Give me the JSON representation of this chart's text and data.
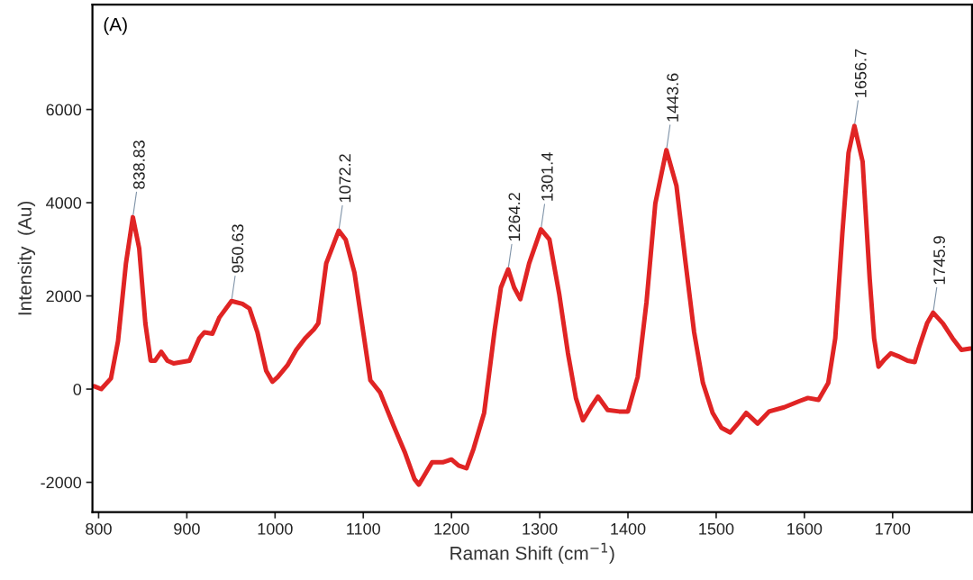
{
  "chart_data": {
    "type": "line",
    "xlabel": "Raman Shift (cm$^{−1}$)",
    "ylabel": "Intensity  (Au)",
    "xlim": [
      793,
      1790
    ],
    "xticks": [
      800,
      900,
      1000,
      1100,
      1200,
      1300,
      1400,
      1500,
      1600,
      1700
    ],
    "ylim": [
      -2640,
      8250
    ],
    "yticks": [
      {
        "value": -2000,
        "label": "-2000"
      },
      0,
      2000,
      4000,
      6000
    ],
    "grid": false,
    "legend": false,
    "marker": "none",
    "line_style": "solid",
    "series": [
      {
        "color": "#e02424",
        "x": [
          795,
          803,
          814,
          822,
          831,
          838.83,
          846,
          853,
          859,
          864,
          871,
          878,
          885,
          903,
          914,
          920,
          929,
          937,
          950.63,
          963,
          971,
          980,
          990,
          997,
          1003,
          1014,
          1024,
          1034,
          1044,
          1049,
          1058,
          1072.2,
          1080,
          1090,
          1100,
          1108,
          1119,
          1134,
          1147,
          1158,
          1163,
          1169,
          1178,
          1190,
          1200,
          1208,
          1217,
          1225,
          1237,
          1249,
          1256,
          1264.2,
          1271,
          1278,
          1288,
          1301.4,
          1311,
          1322,
          1332,
          1341,
          1349,
          1358,
          1366,
          1377,
          1390,
          1400,
          1411,
          1421,
          1431,
          1443.6,
          1455,
          1465,
          1475,
          1485,
          1496,
          1506,
          1516,
          1526,
          1534,
          1547,
          1560,
          1577,
          1594,
          1604,
          1616,
          1627,
          1635,
          1643,
          1650,
          1656.7,
          1666,
          1674,
          1679,
          1684,
          1691,
          1698,
          1706,
          1717,
          1725,
          1730,
          1739,
          1745.9,
          1757,
          1768,
          1778,
          1788
        ],
        "values": [
          60,
          0,
          230,
          1030,
          2700,
          3690,
          3020,
          1410,
          610,
          610,
          800,
          610,
          550,
          610,
          1090,
          1220,
          1190,
          1540,
          1890,
          1830,
          1730,
          1220,
          390,
          160,
          260,
          510,
          840,
          1090,
          1280,
          1410,
          2700,
          3400,
          3210,
          2500,
          1220,
          190,
          -70,
          -770,
          -1350,
          -1930,
          -2050,
          -1860,
          -1570,
          -1570,
          -1510,
          -1640,
          -1700,
          -1280,
          -510,
          1280,
          2180,
          2570,
          2180,
          1930,
          2700,
          3430,
          3210,
          2050,
          770,
          -190,
          -670,
          -390,
          -160,
          -450,
          -480,
          -480,
          260,
          1860,
          3980,
          5130,
          4360,
          2760,
          1220,
          130,
          -510,
          -830,
          -930,
          -710,
          -510,
          -740,
          -480,
          -390,
          -260,
          -190,
          -230,
          130,
          1090,
          3340,
          5070,
          5650,
          4880,
          2370,
          1090,
          480,
          640,
          770,
          710,
          610,
          580,
          900,
          1410,
          1640,
          1410,
          1090,
          840,
          870
        ]
      }
    ],
    "annotations": [
      "(A)",
      {
        "text": "838.83",
        "x": 838.83,
        "y": 3690
      },
      {
        "text": "950.63",
        "x": 950.63,
        "y": 1890
      },
      {
        "text": "1072.2",
        "x": 1072.2,
        "y": 3400
      },
      {
        "text": "1264.2",
        "x": 1264.2,
        "y": 2570
      },
      {
        "text": "1301.4",
        "x": 1301.4,
        "y": 3430
      },
      {
        "text": "1443.6",
        "x": 1443.6,
        "y": 5130
      },
      {
        "text": "1656.7",
        "x": 1656.7,
        "y": 5650
      },
      {
        "text": "1745.9",
        "x": 1745.9,
        "y": 1640
      }
    ]
  }
}
